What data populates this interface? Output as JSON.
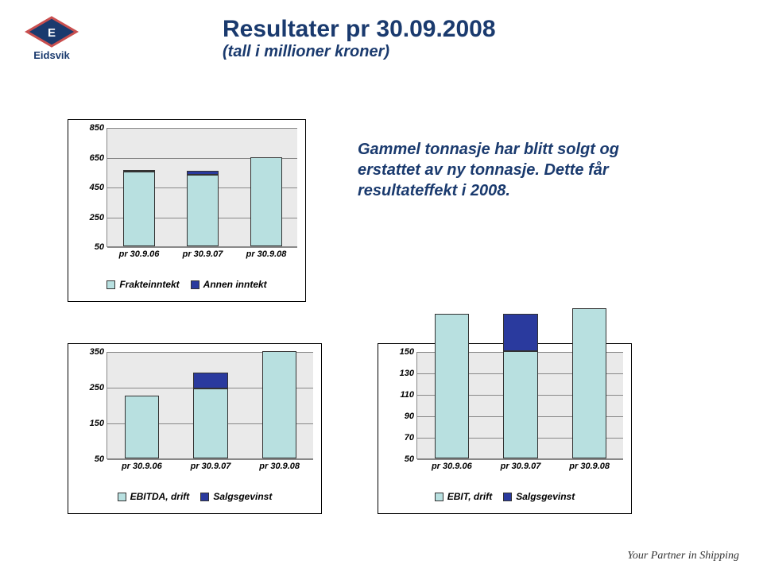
{
  "brand": {
    "name": "Eidsvik",
    "logo_letter": "E",
    "logo_bg": "#1a3a6e",
    "logo_border": "#c94f4f"
  },
  "title": {
    "main": "Resultater pr 30.09.2008",
    "sub": "(tall i millioner kroner)"
  },
  "description": "Gammel tonnasje har blitt solgt og erstattet av ny tonnasje. Dette får resultateffekt  i 2008.",
  "colors": {
    "series1": "#b8e0e0",
    "series2": "#2a3a9e",
    "plot_bg": "#eaeaea",
    "grid": "#888888"
  },
  "chart1": {
    "type": "stacked-bar",
    "ylim": [
      50,
      850
    ],
    "ytick_step": 200,
    "yticks": [
      50,
      250,
      450,
      650,
      850
    ],
    "categories": [
      "pr 30.9.06",
      "pr 30.9.07",
      "pr 30.9.08"
    ],
    "series": [
      {
        "name": "Frakteinntekt",
        "values": [
          500,
          480,
          600
        ]
      },
      {
        "name": "Annen inntekt",
        "values": [
          5,
          25,
          0
        ]
      }
    ]
  },
  "chart2": {
    "type": "stacked-bar",
    "ylim": [
      50,
      350
    ],
    "ytick_step": 100,
    "yticks": [
      50,
      150,
      250,
      350
    ],
    "categories": [
      "pr 30.9.06",
      "pr 30.9.07",
      "pr 30.9.08"
    ],
    "series": [
      {
        "name": "EBITDA, drift",
        "values": [
          175,
          195,
          300
        ]
      },
      {
        "name": "Salgsgevinst",
        "values": [
          0,
          45,
          0
        ]
      }
    ]
  },
  "chart3": {
    "type": "stacked-bar",
    "ylim": [
      50,
      150
    ],
    "ytick_step": 20,
    "yticks": [
      50,
      70,
      90,
      110,
      130,
      150
    ],
    "categories": [
      "pr 30.9.06",
      "pr 30.9.07",
      "pr 30.9.08"
    ],
    "series": [
      {
        "name": "EBIT, drift",
        "values": [
          135,
          100,
          140
        ]
      },
      {
        "name": "Salgsgevinst",
        "values": [
          0,
          35,
          0
        ]
      }
    ]
  },
  "footer": "Your Partner in Shipping"
}
